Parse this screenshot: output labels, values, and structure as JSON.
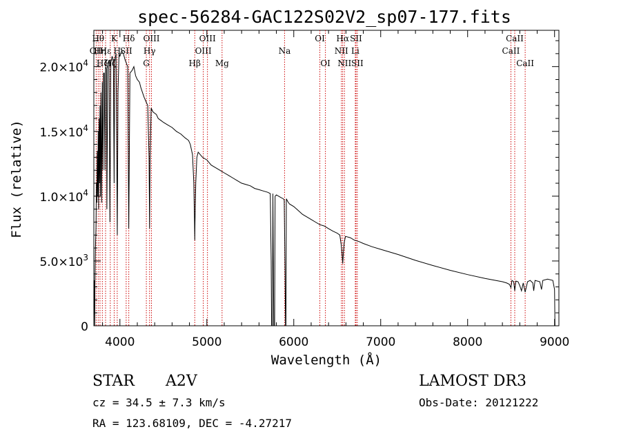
{
  "chart_data": {
    "type": "line",
    "title": "spec-56284-GAC122S02V2_sp07-177.fits",
    "xlabel": "Wavelength (Å)",
    "ylabel": "Flux (relative)",
    "xlim": [
      3700,
      9050
    ],
    "ylim": [
      0,
      22800
    ],
    "xticks": [
      {
        "v": 4000,
        "label": "4000"
      },
      {
        "v": 5000,
        "label": "5000"
      },
      {
        "v": 6000,
        "label": "6000"
      },
      {
        "v": 7000,
        "label": "7000"
      },
      {
        "v": 8000,
        "label": "8000"
      },
      {
        "v": 9000,
        "label": "9000"
      }
    ],
    "yticks": [
      {
        "v": 0,
        "mant": "0",
        "exp": ""
      },
      {
        "v": 5000,
        "mant": "5.0×10",
        "exp": "3"
      },
      {
        "v": 10000,
        "mant": "1.0×10",
        "exp": "4"
      },
      {
        "v": 15000,
        "mant": "1.5×10",
        "exp": "4"
      },
      {
        "v": 20000,
        "mant": "2.0×10",
        "exp": "4"
      }
    ],
    "lines": [
      {
        "x": 3727,
        "label": "OII",
        "row": 2
      },
      {
        "x": 3750,
        "label": "Hθ",
        "row": 1
      },
      {
        "x": 3771,
        "label": "Hη",
        "row": 2
      },
      {
        "x": 3798,
        "label": "Hζ",
        "row": 3
      },
      {
        "x": 3835,
        "label": "Hε",
        "row": 2
      },
      {
        "x": 3889,
        "label": "Hζ",
        "row": 3
      },
      {
        "x": 3934,
        "label": "K",
        "row": 1
      },
      {
        "x": 3969,
        "label": "H",
        "row": 2
      },
      {
        "x": 4102,
        "label": "Hδ",
        "row": 1
      },
      {
        "x": 4072,
        "label": "SII",
        "row": 2
      },
      {
        "x": 4304,
        "label": "G",
        "row": 3
      },
      {
        "x": 4341,
        "label": "Hγ",
        "row": 2
      },
      {
        "x": 4363,
        "label": "OIII",
        "row": 1
      },
      {
        "x": 4861,
        "label": "Hβ",
        "row": 3
      },
      {
        "x": 4959,
        "label": "OIII",
        "row": 2
      },
      {
        "x": 5007,
        "label": "OIII",
        "row": 1
      },
      {
        "x": 5175,
        "label": "Mg",
        "row": 3
      },
      {
        "x": 5894,
        "label": "Na",
        "row": 2
      },
      {
        "x": 6300,
        "label": "OI",
        "row": 1
      },
      {
        "x": 6364,
        "label": "OI",
        "row": 3
      },
      {
        "x": 6548,
        "label": "NII",
        "row": 2
      },
      {
        "x": 6563,
        "label": "Hα",
        "row": 1
      },
      {
        "x": 6583,
        "label": "NII",
        "row": 3
      },
      {
        "x": 6708,
        "label": "Li",
        "row": 2
      },
      {
        "x": 6716,
        "label": "SII",
        "row": 1
      },
      {
        "x": 6731,
        "label": "SII",
        "row": 3
      },
      {
        "x": 8498,
        "label": "CaII",
        "row": 2
      },
      {
        "x": 8542,
        "label": "CaII",
        "row": 1
      },
      {
        "x": 8662,
        "label": "CaII",
        "row": 3
      }
    ],
    "series": [
      {
        "name": "spectrum",
        "points": [
          [
            3700,
            2500
          ],
          [
            3705,
            3500
          ],
          [
            3710,
            0
          ],
          [
            3712,
            3000
          ],
          [
            3718,
            6000
          ],
          [
            3725,
            7500
          ],
          [
            3730,
            11000
          ],
          [
            3734,
            9500
          ],
          [
            3740,
            13500
          ],
          [
            3745,
            10000
          ],
          [
            3750,
            15000
          ],
          [
            3755,
            9000
          ],
          [
            3760,
            16000
          ],
          [
            3766,
            11000
          ],
          [
            3771,
            17000
          ],
          [
            3776,
            10000
          ],
          [
            3782,
            18000
          ],
          [
            3790,
            9500
          ],
          [
            3798,
            18800
          ],
          [
            3805,
            12000
          ],
          [
            3812,
            19500
          ],
          [
            3820,
            19500
          ],
          [
            3828,
            12000
          ],
          [
            3835,
            20000
          ],
          [
            3845,
            19800
          ],
          [
            3850,
            9000
          ],
          [
            3860,
            20200
          ],
          [
            3875,
            20500
          ],
          [
            3885,
            8000
          ],
          [
            3895,
            20300
          ],
          [
            3910,
            20800
          ],
          [
            3925,
            20500
          ],
          [
            3933,
            11000
          ],
          [
            3940,
            20500
          ],
          [
            3955,
            21000
          ],
          [
            3962,
            15000
          ],
          [
            3970,
            7000
          ],
          [
            3978,
            18000
          ],
          [
            3990,
            21000
          ],
          [
            4000,
            20800
          ],
          [
            4020,
            21200
          ],
          [
            4040,
            21000
          ],
          [
            4060,
            20500
          ],
          [
            4090,
            20000
          ],
          [
            4095,
            14000
          ],
          [
            4102,
            7500
          ],
          [
            4108,
            13000
          ],
          [
            4115,
            19500
          ],
          [
            4140,
            19700
          ],
          [
            4160,
            20000
          ],
          [
            4180,
            19300
          ],
          [
            4200,
            19000
          ],
          [
            4225,
            18800
          ],
          [
            4240,
            18400
          ],
          [
            4260,
            18000
          ],
          [
            4280,
            17600
          ],
          [
            4300,
            17300
          ],
          [
            4320,
            17000
          ],
          [
            4335,
            13000
          ],
          [
            4341,
            7500
          ],
          [
            4347,
            13000
          ],
          [
            4360,
            16800
          ],
          [
            4380,
            16500
          ],
          [
            4400,
            16400
          ],
          [
            4420,
            16300
          ],
          [
            4440,
            16000
          ],
          [
            4460,
            15900
          ],
          [
            4480,
            15800
          ],
          [
            4500,
            15700
          ],
          [
            4550,
            15500
          ],
          [
            4600,
            15300
          ],
          [
            4650,
            15000
          ],
          [
            4700,
            14800
          ],
          [
            4750,
            14500
          ],
          [
            4790,
            14300
          ],
          [
            4810,
            14000
          ],
          [
            4835,
            13200
          ],
          [
            4850,
            11000
          ],
          [
            4858,
            8000
          ],
          [
            4861,
            6600
          ],
          [
            4864,
            8000
          ],
          [
            4872,
            11000
          ],
          [
            4885,
            13000
          ],
          [
            4900,
            13400
          ],
          [
            4950,
            13000
          ],
          [
            5000,
            12800
          ],
          [
            5050,
            12400
          ],
          [
            5100,
            12200
          ],
          [
            5150,
            12000
          ],
          [
            5200,
            11800
          ],
          [
            5250,
            11600
          ],
          [
            5300,
            11400
          ],
          [
            5350,
            11200
          ],
          [
            5400,
            11000
          ],
          [
            5450,
            10900
          ],
          [
            5500,
            10800
          ],
          [
            5550,
            10600
          ],
          [
            5600,
            10500
          ],
          [
            5650,
            10400
          ],
          [
            5700,
            10300
          ],
          [
            5730,
            10200
          ],
          [
            5740,
            5000
          ],
          [
            5745,
            0
          ],
          [
            5755,
            0
          ],
          [
            5760,
            10200
          ],
          [
            5770,
            0
          ],
          [
            5780,
            0
          ],
          [
            5785,
            10000
          ],
          [
            5800,
            10100
          ],
          [
            5850,
            9900
          ],
          [
            5880,
            9800
          ],
          [
            5890,
            9700
          ],
          [
            5900,
            4000
          ],
          [
            5905,
            0
          ],
          [
            5910,
            0
          ],
          [
            5915,
            9800
          ],
          [
            5930,
            9600
          ],
          [
            5950,
            9400
          ],
          [
            6000,
            9200
          ],
          [
            6050,
            8900
          ],
          [
            6100,
            8600
          ],
          [
            6150,
            8400
          ],
          [
            6200,
            8200
          ],
          [
            6250,
            8000
          ],
          [
            6300,
            7800
          ],
          [
            6350,
            7700
          ],
          [
            6400,
            7500
          ],
          [
            6450,
            7300
          ],
          [
            6500,
            7150
          ],
          [
            6530,
            7000
          ],
          [
            6545,
            6300
          ],
          [
            6555,
            5600
          ],
          [
            6563,
            4800
          ],
          [
            6570,
            5600
          ],
          [
            6580,
            6400
          ],
          [
            6595,
            6900
          ],
          [
            6650,
            6800
          ],
          [
            6700,
            6600
          ],
          [
            6750,
            6500
          ],
          [
            6800,
            6350
          ],
          [
            6900,
            6100
          ],
          [
            7000,
            5900
          ],
          [
            7200,
            5500
          ],
          [
            7400,
            5050
          ],
          [
            7600,
            4650
          ],
          [
            7800,
            4280
          ],
          [
            8000,
            3950
          ],
          [
            8200,
            3650
          ],
          [
            8400,
            3400
          ],
          [
            8450,
            3300
          ],
          [
            8480,
            3200
          ],
          [
            8498,
            2950
          ],
          [
            8510,
            3500
          ],
          [
            8530,
            3400
          ],
          [
            8542,
            2700
          ],
          [
            8555,
            3450
          ],
          [
            8580,
            3400
          ],
          [
            8600,
            3100
          ],
          [
            8620,
            2700
          ],
          [
            8640,
            3300
          ],
          [
            8662,
            2600
          ],
          [
            8690,
            3400
          ],
          [
            8720,
            3500
          ],
          [
            8750,
            3300
          ],
          [
            8760,
            2700
          ],
          [
            8775,
            3500
          ],
          [
            8830,
            3400
          ],
          [
            8850,
            2800
          ],
          [
            8865,
            3500
          ],
          [
            8920,
            3600
          ],
          [
            8980,
            3500
          ],
          [
            9000,
            2800
          ],
          [
            9005,
            0
          ]
        ]
      }
    ]
  },
  "info": {
    "class_label": "STAR",
    "subclass": "A2V",
    "survey": "LAMOST DR3",
    "cz": "cz = 34.5 ± 7.3 km/s",
    "obs_date": "Obs-Date: 20121222",
    "coords": "RA = 123.68109, DEC =  -4.27217"
  },
  "colors": {
    "line_marker": "#cc0000",
    "spectrum": "#000000",
    "axis": "#000000"
  }
}
